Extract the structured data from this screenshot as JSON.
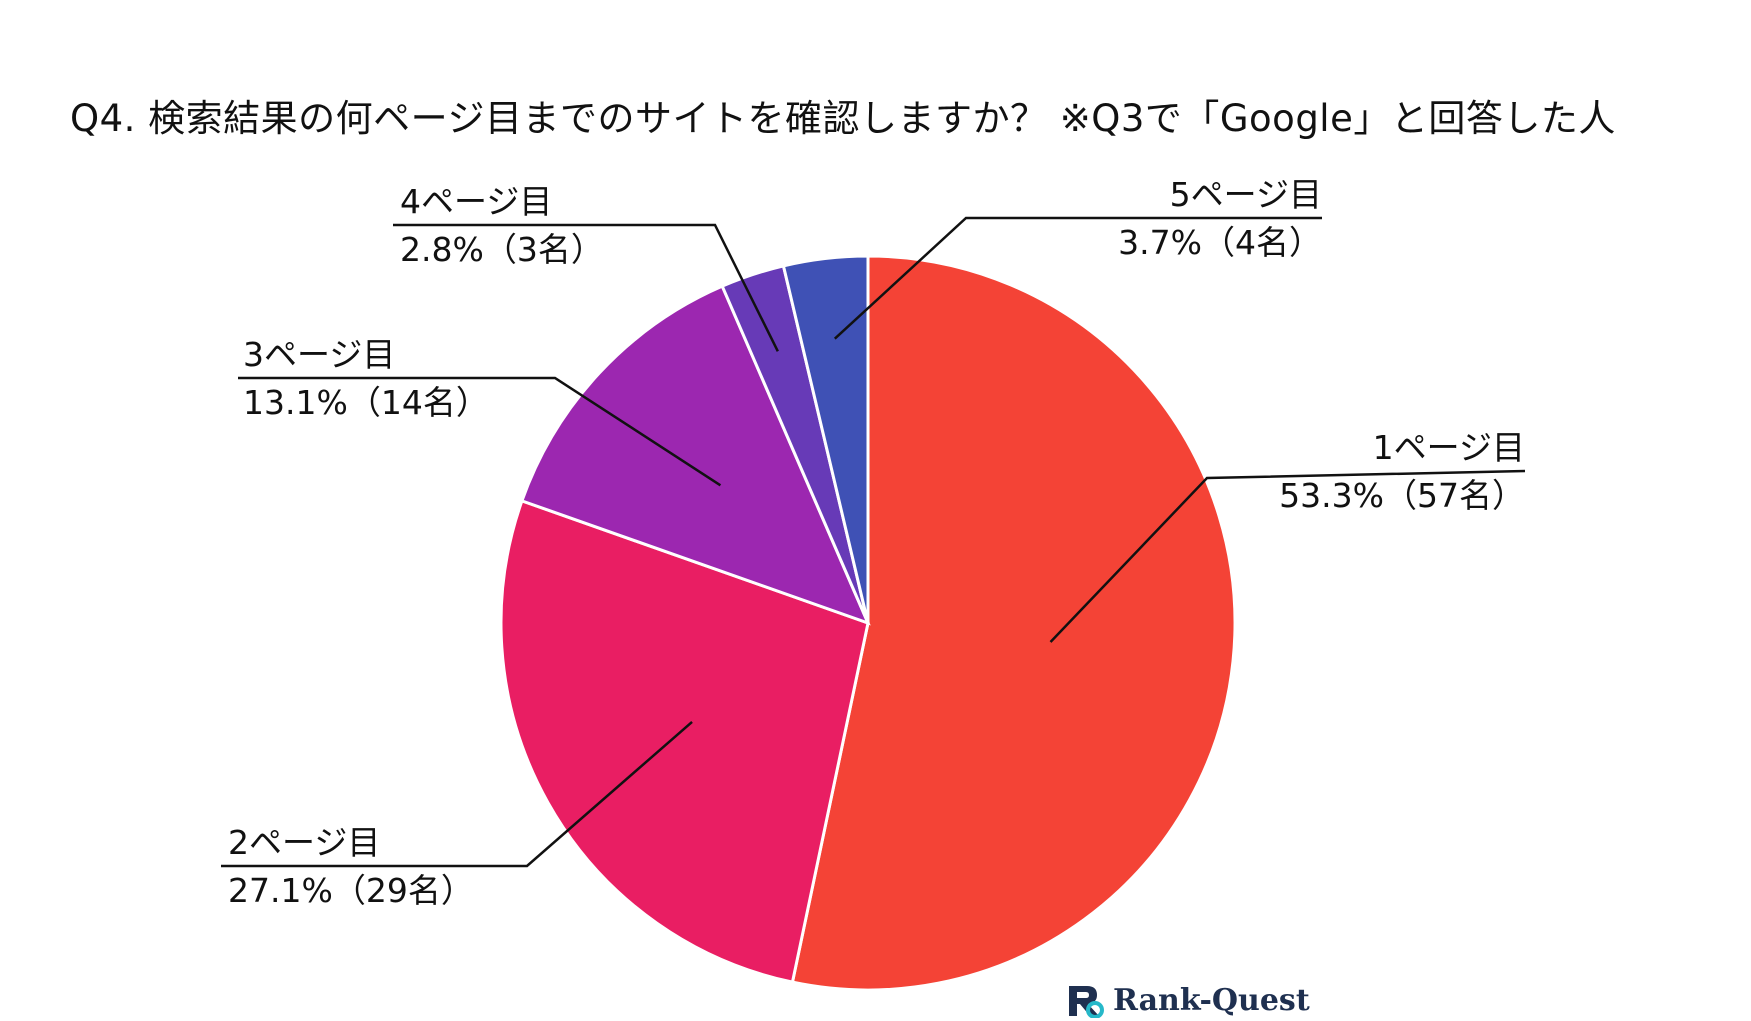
{
  "chart_data": {
    "type": "pie",
    "title": "Q4. 検索結果の何ページ目までのサイトを確認しますか？ ※Q3で「Google」と回答した人",
    "slices": [
      {
        "name": "1ページ目",
        "value": 53.3,
        "count_label": "53.3%（57名）",
        "color": "#f44336"
      },
      {
        "name": "2ページ目",
        "value": 27.1,
        "count_label": "27.1%（29名）",
        "color": "#e91e63"
      },
      {
        "name": "3ページ目",
        "value": 13.1,
        "count_label": "13.1%（14名）",
        "color": "#9c27b0"
      },
      {
        "name": "4ページ目",
        "value": 2.8,
        "count_label": "2.8%（3名）",
        "color": "#673ab7"
      },
      {
        "name": "5ページ目",
        "value": 3.7,
        "count_label": "3.7%（4名）",
        "color": "#3f51b5"
      }
    ],
    "start": "12 o'clock",
    "direction": "clockwise",
    "legend": "none"
  },
  "brand": {
    "name": "Rank-Quest",
    "icon": "rank-quest-logo-icon",
    "colors": {
      "dark": "#1f3050",
      "accent": "#26b8c9"
    }
  }
}
